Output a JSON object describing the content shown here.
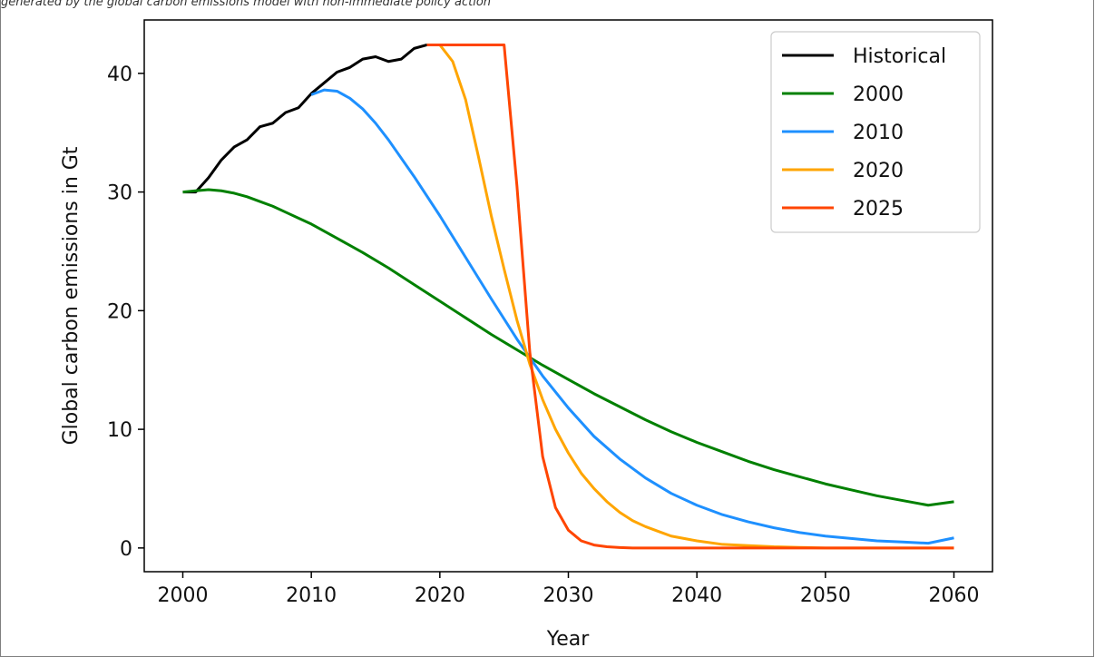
{
  "figure": {
    "caption": "generated by the global carbon emissions model with non-immediate policy action"
  },
  "chart_data": {
    "type": "line",
    "title": "",
    "xlabel": "Year",
    "ylabel": "Global carbon emissions in Gt",
    "xlim": [
      1997,
      2063
    ],
    "ylim": [
      -2,
      44.5
    ],
    "xticks": [
      2000,
      2010,
      2020,
      2030,
      2040,
      2050,
      2060
    ],
    "yticks": [
      0,
      10,
      20,
      30,
      40
    ],
    "grid": false,
    "legend_position": "top-right",
    "series": [
      {
        "name": "Historical",
        "color": "#000000",
        "x": [
          2000,
          2001,
          2002,
          2003,
          2004,
          2005,
          2006,
          2007,
          2008,
          2009,
          2010,
          2011,
          2012,
          2013,
          2014,
          2015,
          2016,
          2017,
          2018,
          2019
        ],
        "y": [
          30.0,
          30.0,
          31.2,
          32.7,
          33.8,
          34.4,
          35.5,
          35.8,
          36.7,
          37.1,
          38.3,
          39.2,
          40.1,
          40.5,
          41.2,
          41.4,
          41.0,
          41.2,
          42.1,
          42.4
        ]
      },
      {
        "name": "2000",
        "color": "#008000",
        "x": [
          2000,
          2001,
          2002,
          2003,
          2004,
          2005,
          2006,
          2007,
          2008,
          2009,
          2010,
          2012,
          2014,
          2016,
          2018,
          2020,
          2022,
          2024,
          2026,
          2028,
          2030,
          2032,
          2034,
          2036,
          2038,
          2040,
          2042,
          2044,
          2046,
          2048,
          2050,
          2052,
          2054,
          2056,
          2058,
          2060
        ],
        "y": [
          30.0,
          30.1,
          30.2,
          30.1,
          29.9,
          29.6,
          29.2,
          28.8,
          28.3,
          27.8,
          27.3,
          26.1,
          24.9,
          23.6,
          22.2,
          20.8,
          19.4,
          18.0,
          16.7,
          15.4,
          14.2,
          13.0,
          11.9,
          10.8,
          9.8,
          8.9,
          8.1,
          7.3,
          6.6,
          6.0,
          5.4,
          4.9,
          4.4,
          4.0,
          3.6,
          3.9
        ]
      },
      {
        "name": "2010",
        "color": "#1e90ff",
        "x": [
          2010,
          2011,
          2012,
          2013,
          2014,
          2015,
          2016,
          2018,
          2020,
          2022,
          2024,
          2026,
          2028,
          2030,
          2032,
          2034,
          2036,
          2038,
          2040,
          2042,
          2044,
          2046,
          2048,
          2050,
          2052,
          2054,
          2056,
          2058,
          2060
        ],
        "y": [
          38.2,
          38.6,
          38.5,
          37.9,
          37.0,
          35.8,
          34.4,
          31.3,
          28.0,
          24.5,
          21.0,
          17.6,
          14.5,
          11.8,
          9.4,
          7.5,
          5.9,
          4.6,
          3.6,
          2.8,
          2.2,
          1.7,
          1.3,
          1.0,
          0.8,
          0.6,
          0.5,
          0.4,
          0.85
        ]
      },
      {
        "name": "2020",
        "color": "#ffa500",
        "x": [
          2019,
          2020,
          2021,
          2022,
          2023,
          2024,
          2025,
          2026,
          2027,
          2028,
          2029,
          2030,
          2031,
          2032,
          2033,
          2034,
          2035,
          2036,
          2037,
          2038,
          2040,
          2042,
          2044,
          2046,
          2048,
          2050,
          2055,
          2060
        ],
        "y": [
          42.4,
          42.4,
          41.0,
          37.8,
          33.0,
          28.0,
          23.5,
          19.2,
          15.5,
          12.5,
          10.0,
          8.0,
          6.3,
          5.0,
          3.9,
          3.0,
          2.3,
          1.8,
          1.4,
          1.0,
          0.6,
          0.3,
          0.2,
          0.1,
          0.05,
          0.0,
          0.0,
          0.0
        ]
      },
      {
        "name": "2025",
        "color": "#ff4500",
        "x": [
          2019,
          2020,
          2021,
          2022,
          2023,
          2024,
          2025,
          2026,
          2027,
          2028,
          2029,
          2030,
          2031,
          2032,
          2033,
          2034,
          2035,
          2036,
          2040,
          2050,
          2060
        ],
        "y": [
          42.4,
          42.4,
          42.4,
          42.4,
          42.4,
          42.4,
          42.4,
          30.5,
          16.5,
          7.7,
          3.4,
          1.5,
          0.6,
          0.25,
          0.1,
          0.04,
          0.0,
          0.0,
          0.0,
          0.0,
          0.0
        ]
      }
    ]
  }
}
